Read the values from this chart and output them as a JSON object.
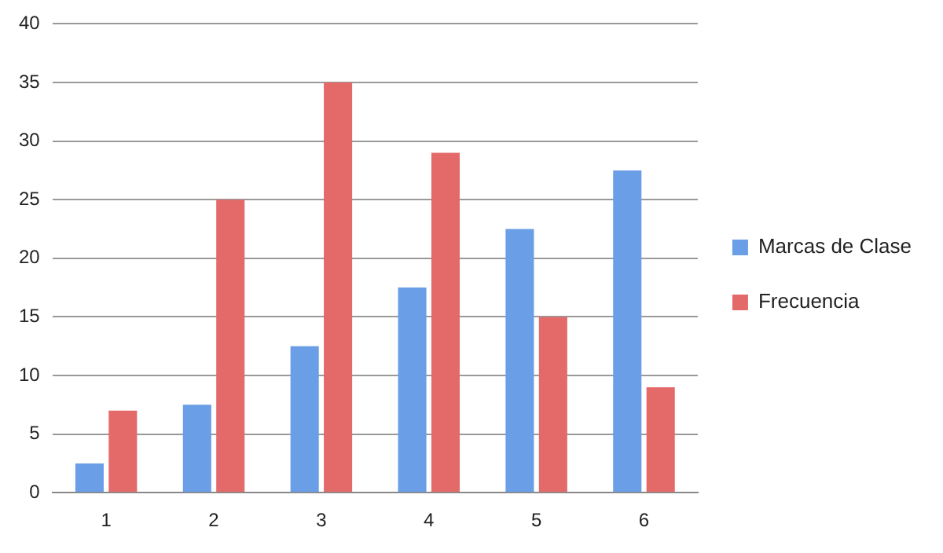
{
  "chart_data": {
    "type": "bar",
    "categories": [
      "1",
      "2",
      "3",
      "4",
      "5",
      "6"
    ],
    "series": [
      {
        "name": "Marcas de Clase",
        "color": "#6a9ee6",
        "values": [
          2.5,
          7.5,
          12.5,
          17.5,
          22.5,
          27.5
        ]
      },
      {
        "name": "Frecuencia",
        "color": "#e46a6a",
        "values": [
          7,
          25,
          35,
          29,
          15,
          9
        ]
      }
    ],
    "ylim": [
      0,
      40
    ],
    "yticks": [
      0,
      5,
      10,
      15,
      20,
      25,
      30,
      35,
      40
    ],
    "grid": "y",
    "legend": "right"
  }
}
